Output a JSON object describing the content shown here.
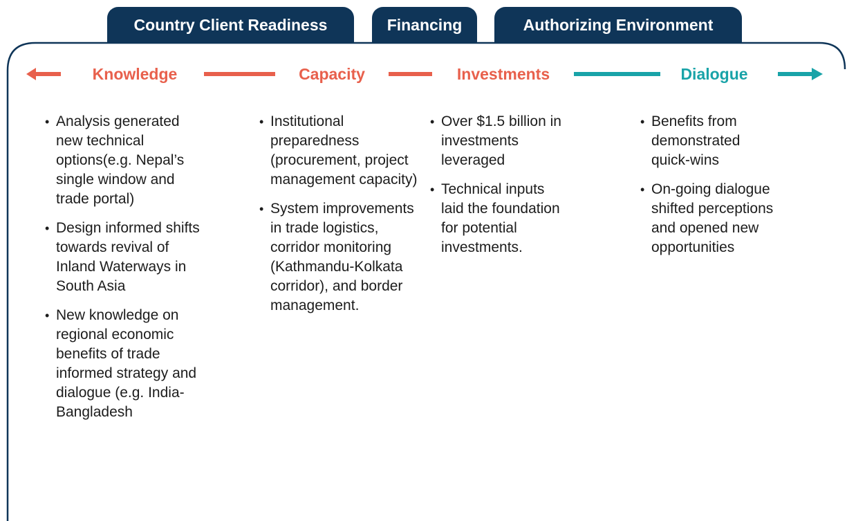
{
  "tabs": [
    "Country Client Readiness",
    "Financing",
    "Authorizing Environment"
  ],
  "stages": [
    {
      "label": "Knowledge",
      "bullets": [
        "Analysis generated new technical options(e.g. Nepal’s single window and trade portal)",
        "Design informed shifts towards revival of Inland Waterways in South Asia",
        "New knowledge on regional economic benefits of trade informed strategy and dialogue (e.g. India-Bangladesh"
      ]
    },
    {
      "label": "Capacity",
      "bullets": [
        "Institutional preparedness (procurement, project management capacity)",
        "System improvements in trade logistics, corridor monitoring (Kathmandu-Kolkata corridor), and border management."
      ]
    },
    {
      "label": "Investments",
      "bullets": [
        "Over $1.5 billion in investments leveraged",
        "Technical inputs laid the foundation for potential investments."
      ]
    },
    {
      "label": "Dialogue",
      "bullets": [
        "Benefits from demonstrated quick-wins",
        "On-going dialogue shifted perceptions and opened new opportunities"
      ]
    }
  ]
}
